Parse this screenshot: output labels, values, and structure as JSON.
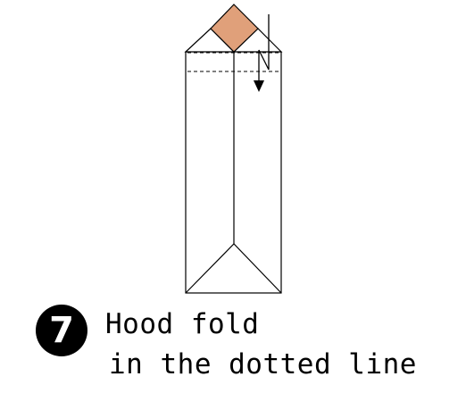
{
  "step": {
    "number": "7"
  },
  "caption": {
    "line1": "Hood fold",
    "line2": "in the dotted line"
  },
  "colors": {
    "paper_back": "#e0a07a",
    "line": "#000000",
    "background": "#ffffff"
  }
}
